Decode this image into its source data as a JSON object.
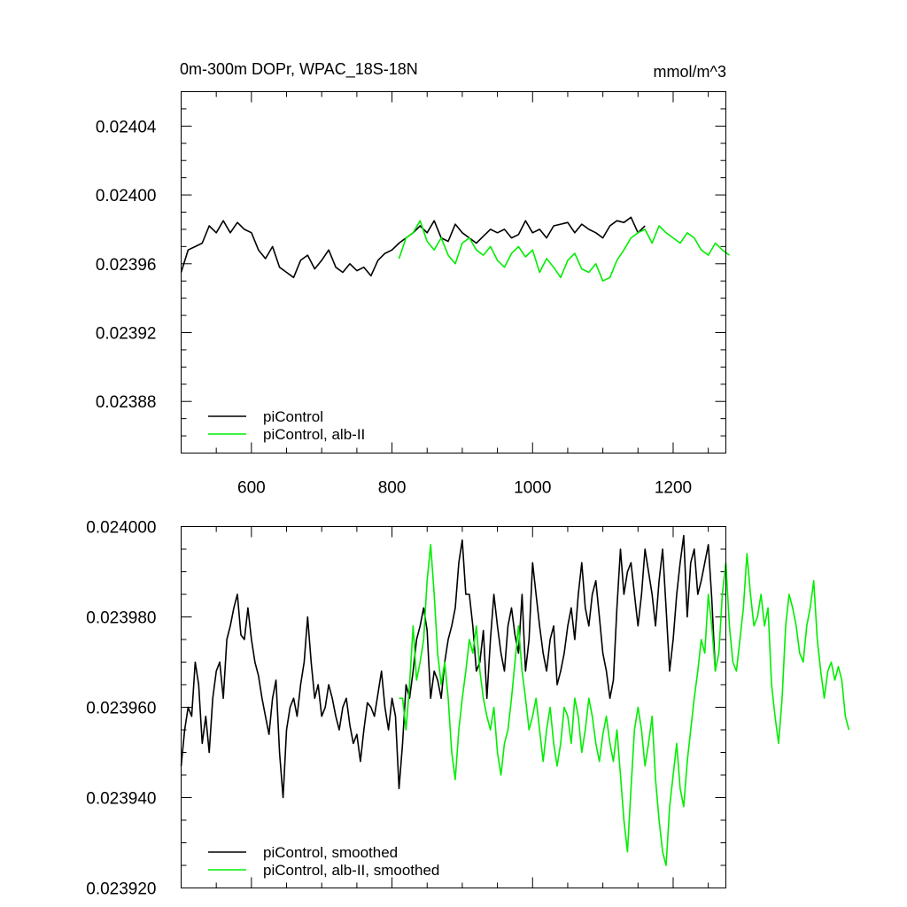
{
  "chart_data": [
    {
      "type": "line",
      "title": "0m-300m DOPr, WPAC_18S-18N",
      "units": "mmol/m^3",
      "xlim": [
        500,
        1275
      ],
      "ylim": [
        0.02385,
        0.02406
      ],
      "xticks": [
        600,
        800,
        1000,
        1200
      ],
      "xtick_labels": [
        "600",
        "800",
        "1000",
        "1200"
      ],
      "yticks": [
        0.02388,
        0.02392,
        0.02396,
        0.024,
        0.02404
      ],
      "ytick_labels": [
        "0.02388",
        "0.02392",
        "0.02396",
        "0.02400",
        "0.02404"
      ],
      "legend_position": "bottom-left",
      "series": [
        {
          "name": "piControl",
          "color": "#000000",
          "x_start": 500,
          "x_step": 10,
          "values": [
            0.023955,
            0.023968,
            0.02397,
            0.023972,
            0.023982,
            0.023978,
            0.023985,
            0.023978,
            0.023984,
            0.02398,
            0.023978,
            0.023968,
            0.023963,
            0.02397,
            0.023958,
            0.023955,
            0.023952,
            0.023962,
            0.023965,
            0.023957,
            0.023962,
            0.023968,
            0.023958,
            0.023955,
            0.02396,
            0.023956,
            0.023958,
            0.023953,
            0.023962,
            0.023966,
            0.023968,
            0.023972,
            0.023975,
            0.023978,
            0.023982,
            0.023978,
            0.023985,
            0.023975,
            0.023973,
            0.023983,
            0.023978,
            0.023975,
            0.023972,
            0.023976,
            0.02398,
            0.023978,
            0.02398,
            0.023975,
            0.023977,
            0.023985,
            0.023978,
            0.02398,
            0.023975,
            0.023982,
            0.023983,
            0.023984,
            0.023978,
            0.023983,
            0.02398,
            0.023978,
            0.023975,
            0.023982,
            0.023985,
            0.023984,
            0.023987,
            0.023978,
            0.023982
          ]
        },
        {
          "name": "piControl, alb-II",
          "color": "#00ee00",
          "x_start": 810,
          "x_step": 10,
          "values": [
            0.023963,
            0.023975,
            0.023978,
            0.023985,
            0.023973,
            0.023968,
            0.023975,
            0.023965,
            0.02396,
            0.023972,
            0.023975,
            0.023968,
            0.023965,
            0.02397,
            0.023962,
            0.023958,
            0.023966,
            0.02397,
            0.023964,
            0.023968,
            0.023955,
            0.023963,
            0.023958,
            0.023952,
            0.023962,
            0.023966,
            0.023957,
            0.023955,
            0.02396,
            0.02395,
            0.023952,
            0.023962,
            0.023968,
            0.023975,
            0.023978,
            0.02398,
            0.023972,
            0.023982,
            0.023978,
            0.023975,
            0.023972,
            0.023978,
            0.023975,
            0.023968,
            0.023965,
            0.023972,
            0.023968,
            0.023965
          ]
        }
      ]
    },
    {
      "type": "line",
      "xlim": [
        500,
        1275
      ],
      "ylim": [
        0.02392,
        0.024
      ],
      "xticks": [
        600,
        800,
        1000,
        1200
      ],
      "yticks": [
        0.02392,
        0.02394,
        0.02396,
        0.02398,
        0.024
      ],
      "ytick_labels": [
        "0.023920",
        "0.023940",
        "0.023960",
        "0.023980",
        "0.024000"
      ],
      "legend_position": "bottom-left",
      "series": [
        {
          "name": "piControl, smoothed",
          "color": "#000000",
          "x_start": 500,
          "x_step": 5,
          "values": [
            0.023947,
            0.023955,
            0.02396,
            0.023958,
            0.02397,
            0.023965,
            0.023952,
            0.023958,
            0.02395,
            0.023962,
            0.023968,
            0.02397,
            0.023962,
            0.023975,
            0.023978,
            0.023982,
            0.023985,
            0.023976,
            0.023975,
            0.023982,
            0.023975,
            0.02397,
            0.023967,
            0.023962,
            0.023958,
            0.023954,
            0.023962,
            0.023966,
            0.02395,
            0.02394,
            0.023955,
            0.02396,
            0.023962,
            0.023958,
            0.023965,
            0.02397,
            0.02398,
            0.02397,
            0.023962,
            0.023965,
            0.023958,
            0.02396,
            0.023965,
            0.023962,
            0.023958,
            0.023955,
            0.02396,
            0.023962,
            0.023956,
            0.023952,
            0.023954,
            0.023948,
            0.023955,
            0.023961,
            0.02396,
            0.023958,
            0.023963,
            0.023968,
            0.02396,
            0.023955,
            0.023962,
            0.023958,
            0.023942,
            0.023952,
            0.023965,
            0.023962,
            0.023968,
            0.023975,
            0.023978,
            0.023982,
            0.023977,
            0.023962,
            0.023968,
            0.023966,
            0.023962,
            0.02397,
            0.023975,
            0.023978,
            0.023982,
            0.023992,
            0.023997,
            0.023985,
            0.023985,
            0.023978,
            0.023968,
            0.02397,
            0.023977,
            0.023962,
            0.023975,
            0.023985,
            0.023978,
            0.023972,
            0.023968,
            0.023978,
            0.023982,
            0.023976,
            0.023972,
            0.023985,
            0.023968,
            0.023975,
            0.023992,
            0.023985,
            0.023978,
            0.023972,
            0.023968,
            0.023975,
            0.023978,
            0.023965,
            0.023968,
            0.023972,
            0.023978,
            0.023982,
            0.023975,
            0.023985,
            0.023992,
            0.023982,
            0.023978,
            0.023985,
            0.023988,
            0.02398,
            0.023972,
            0.023968,
            0.023962,
            0.023966,
            0.023982,
            0.023995,
            0.023985,
            0.02399,
            0.023992,
            0.023985,
            0.023978,
            0.023985,
            0.023995,
            0.02399,
            0.023985,
            0.023978,
            0.023988,
            0.023995,
            0.023982,
            0.023968,
            0.023975,
            0.023985,
            0.023992,
            0.023998,
            0.02398,
            0.023992,
            0.023995,
            0.023985,
            0.023988,
            0.023992,
            0.023996,
            0.023984,
            0.023968
          ]
        },
        {
          "name": "piControl, alb-II, smoothed",
          "color": "#00ee00",
          "x_start": 810,
          "x_step": 5,
          "values": [
            0.023962,
            0.023962,
            0.023955,
            0.023965,
            0.023978,
            0.023966,
            0.02397,
            0.023975,
            0.023988,
            0.023996,
            0.023985,
            0.023972,
            0.023965,
            0.02397,
            0.023962,
            0.02395,
            0.023944,
            0.023955,
            0.023962,
            0.023968,
            0.023975,
            0.023972,
            0.023978,
            0.023968,
            0.023962,
            0.023958,
            0.023955,
            0.02396,
            0.02395,
            0.023945,
            0.023952,
            0.023955,
            0.023962,
            0.02397,
            0.023978,
            0.023968,
            0.023962,
            0.023955,
            0.023958,
            0.023962,
            0.023955,
            0.023948,
            0.023955,
            0.02396,
            0.023952,
            0.023947,
            0.023952,
            0.02396,
            0.023958,
            0.023952,
            0.023962,
            0.023958,
            0.02395,
            0.023955,
            0.023962,
            0.023958,
            0.023952,
            0.023948,
            0.023954,
            0.023958,
            0.023952,
            0.023948,
            0.023955,
            0.023945,
            0.023935,
            0.023928,
            0.023942,
            0.023955,
            0.02396,
            0.023955,
            0.023947,
            0.023952,
            0.023958,
            0.023944,
            0.023935,
            0.023928,
            0.023925,
            0.023938,
            0.023945,
            0.023952,
            0.023942,
            0.023938,
            0.023948,
            0.023955,
            0.023962,
            0.023968,
            0.023975,
            0.023972,
            0.023985,
            0.023978,
            0.023968,
            0.023972,
            0.023985,
            0.023992,
            0.023978,
            0.02397,
            0.023968,
            0.023975,
            0.023982,
            0.023994,
            0.023985,
            0.023978,
            0.02398,
            0.023985,
            0.023978,
            0.023982,
            0.023965,
            0.023958,
            0.023952,
            0.023962,
            0.023978,
            0.023985,
            0.023982,
            0.023978,
            0.023972,
            0.02397,
            0.023978,
            0.023982,
            0.023988,
            0.023975,
            0.023968,
            0.023962,
            0.023968,
            0.02397,
            0.023966,
            0.023969,
            0.023966,
            0.023958,
            0.023955
          ]
        }
      ]
    }
  ]
}
